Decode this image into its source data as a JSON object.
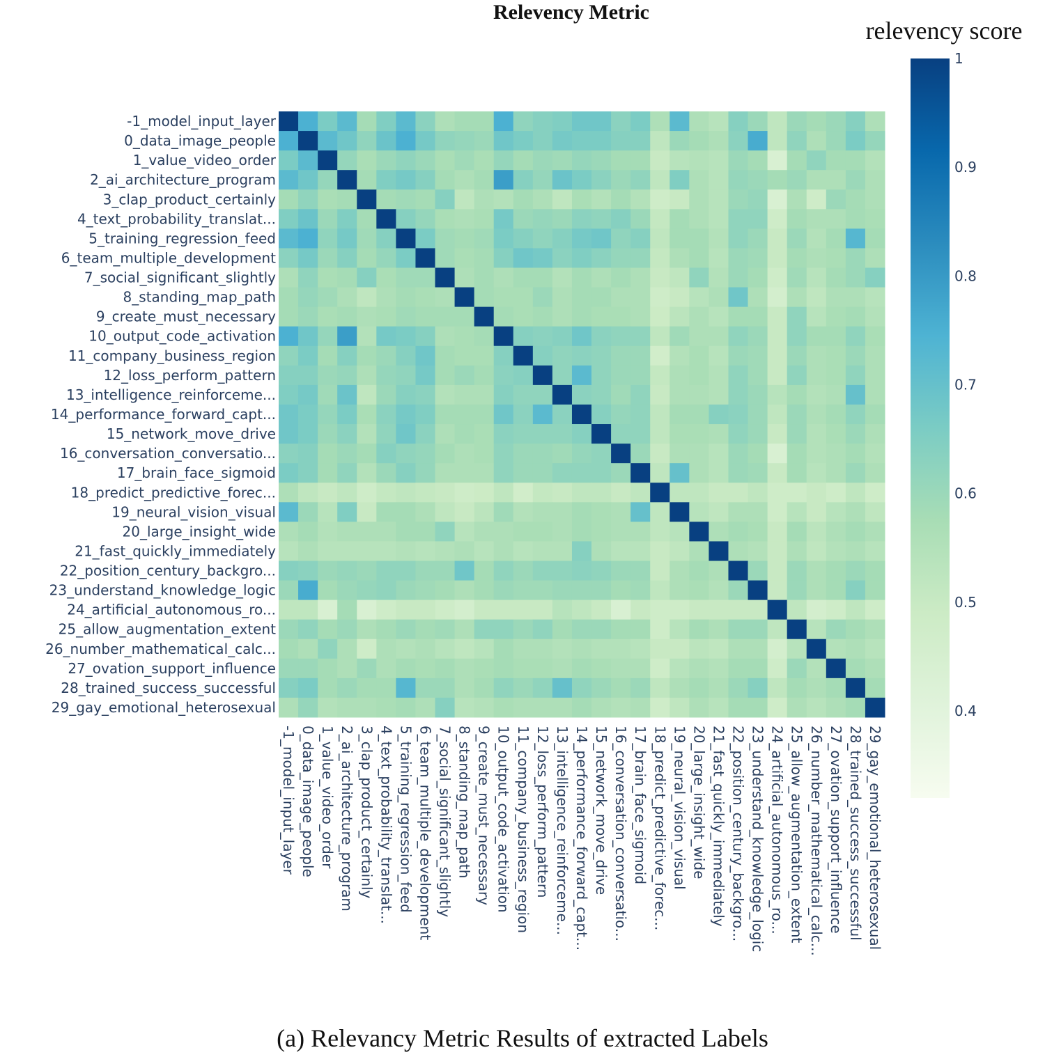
{
  "chart_data": {
    "type": "heatmap",
    "title": "Relevency Metric",
    "caption": "(a) Relevancy Metric Results of extracted Labels",
    "colorbar": {
      "title": "relevency score",
      "range": [
        0.32,
        1.0
      ],
      "ticks": [
        1,
        0.9,
        0.8,
        0.7,
        0.6,
        0.5,
        0.4
      ],
      "tick_labels": [
        "1",
        "0.9",
        "0.8",
        "0.7",
        "0.6",
        "0.5",
        "0.4"
      ],
      "colors": [
        "#f7fcf0",
        "#e0f3db",
        "#ccebc5",
        "#a8ddb5",
        "#7bccc4",
        "#4eb3d3",
        "#2b8cbe",
        "#0868ac",
        "#084081"
      ]
    },
    "labels": [
      "-1_model_input_layer",
      "0_data_image_people",
      "1_value_video_order",
      "2_ai_architecture_program",
      "3_clap_product_certainly",
      "4_text_probability_translat...",
      "5_training_regression_feed",
      "6_team_multiple_development",
      "7_social_significant_slightly",
      "8_standing_map_path",
      "9_create_must_necessary",
      "10_output_code_activation",
      "11_company_business_region",
      "12_loss_perform_pattern",
      "13_intelligence_reinforceme...",
      "14_performance_forward_capt...",
      "15_network_move_drive",
      "16_conversation_conversatio...",
      "17_brain_face_sigmoid",
      "18_predict_predictive_forec...",
      "19_neural_vision_visual",
      "20_large_insight_wide",
      "21_fast_quickly_immediately",
      "22_position_century_backgro...",
      "23_understand_knowledge_logic",
      "24_artificial_autonomous_ro...",
      "25_allow_augmentation_extent",
      "26_number_mathematical_calc...",
      "27_ovation_support_influence",
      "28_trained_success_successful",
      "29_gay_emotional_heterosexual"
    ],
    "z": [
      [
        1.0,
        0.75,
        0.66,
        0.72,
        0.58,
        0.65,
        0.72,
        0.63,
        0.56,
        0.58,
        0.58,
        0.75,
        0.62,
        0.64,
        0.65,
        0.68,
        0.68,
        0.63,
        0.66,
        0.56,
        0.72,
        0.56,
        0.54,
        0.64,
        0.6,
        0.52,
        0.6,
        0.58,
        0.6,
        0.64,
        0.56
      ],
      [
        0.75,
        1.0,
        0.72,
        0.68,
        0.62,
        0.69,
        0.75,
        0.67,
        0.62,
        0.61,
        0.6,
        0.68,
        0.66,
        0.64,
        0.67,
        0.66,
        0.66,
        0.64,
        0.64,
        0.52,
        0.6,
        0.58,
        0.56,
        0.63,
        0.76,
        0.52,
        0.62,
        0.56,
        0.6,
        0.66,
        0.61
      ],
      [
        0.66,
        0.72,
        1.0,
        0.61,
        0.57,
        0.6,
        0.62,
        0.6,
        0.57,
        0.59,
        0.57,
        0.61,
        0.58,
        0.6,
        0.59,
        0.61,
        0.6,
        0.58,
        0.58,
        0.5,
        0.54,
        0.55,
        0.54,
        0.6,
        0.58,
        0.44,
        0.58,
        0.62,
        0.58,
        0.58,
        0.55
      ],
      [
        0.72,
        0.68,
        0.61,
        1.0,
        0.58,
        0.65,
        0.67,
        0.64,
        0.58,
        0.56,
        0.58,
        0.79,
        0.64,
        0.61,
        0.69,
        0.66,
        0.63,
        0.6,
        0.62,
        0.52,
        0.65,
        0.56,
        0.54,
        0.61,
        0.6,
        0.58,
        0.6,
        0.56,
        0.56,
        0.6,
        0.56
      ],
      [
        0.58,
        0.62,
        0.57,
        0.58,
        1.0,
        0.58,
        0.59,
        0.58,
        0.64,
        0.52,
        0.56,
        0.55,
        0.58,
        0.56,
        0.52,
        0.57,
        0.55,
        0.58,
        0.55,
        0.48,
        0.5,
        0.56,
        0.54,
        0.6,
        0.61,
        0.44,
        0.56,
        0.48,
        0.6,
        0.58,
        0.56
      ],
      [
        0.65,
        0.69,
        0.6,
        0.65,
        0.58,
        1.0,
        0.64,
        0.61,
        0.57,
        0.56,
        0.57,
        0.67,
        0.6,
        0.61,
        0.6,
        0.63,
        0.62,
        0.64,
        0.6,
        0.51,
        0.58,
        0.56,
        0.54,
        0.62,
        0.62,
        0.48,
        0.58,
        0.56,
        0.56,
        0.58,
        0.57
      ],
      [
        0.72,
        0.75,
        0.62,
        0.67,
        0.59,
        0.64,
        1.0,
        0.66,
        0.59,
        0.58,
        0.59,
        0.66,
        0.64,
        0.62,
        0.64,
        0.67,
        0.68,
        0.62,
        0.64,
        0.52,
        0.58,
        0.58,
        0.55,
        0.62,
        0.6,
        0.5,
        0.6,
        0.55,
        0.58,
        0.73,
        0.58
      ],
      [
        0.63,
        0.67,
        0.6,
        0.64,
        0.58,
        0.61,
        0.66,
        1.0,
        0.59,
        0.57,
        0.58,
        0.64,
        0.68,
        0.67,
        0.63,
        0.65,
        0.63,
        0.61,
        0.61,
        0.51,
        0.56,
        0.58,
        0.54,
        0.6,
        0.59,
        0.5,
        0.58,
        0.56,
        0.57,
        0.6,
        0.56
      ],
      [
        0.56,
        0.62,
        0.57,
        0.58,
        0.64,
        0.57,
        0.59,
        0.59,
        1.0,
        0.56,
        0.58,
        0.56,
        0.58,
        0.58,
        0.55,
        0.58,
        0.56,
        0.58,
        0.56,
        0.5,
        0.52,
        0.62,
        0.55,
        0.6,
        0.58,
        0.48,
        0.59,
        0.54,
        0.58,
        0.6,
        0.64
      ],
      [
        0.58,
        0.61,
        0.59,
        0.56,
        0.52,
        0.56,
        0.58,
        0.57,
        0.56,
        1.0,
        0.58,
        0.57,
        0.57,
        0.6,
        0.56,
        0.58,
        0.58,
        0.56,
        0.56,
        0.48,
        0.5,
        0.54,
        0.56,
        0.68,
        0.56,
        0.46,
        0.56,
        0.52,
        0.56,
        0.56,
        0.54
      ],
      [
        0.58,
        0.6,
        0.57,
        0.58,
        0.56,
        0.57,
        0.59,
        0.58,
        0.58,
        0.58,
        1.0,
        0.58,
        0.57,
        0.58,
        0.56,
        0.58,
        0.57,
        0.57,
        0.56,
        0.49,
        0.53,
        0.56,
        0.54,
        0.58,
        0.58,
        0.5,
        0.62,
        0.54,
        0.57,
        0.58,
        0.55
      ],
      [
        0.75,
        0.68,
        0.61,
        0.79,
        0.55,
        0.67,
        0.66,
        0.64,
        0.56,
        0.57,
        0.58,
        1.0,
        0.64,
        0.63,
        0.64,
        0.68,
        0.63,
        0.62,
        0.62,
        0.52,
        0.59,
        0.56,
        0.56,
        0.62,
        0.6,
        0.5,
        0.62,
        0.58,
        0.58,
        0.62,
        0.57
      ],
      [
        0.62,
        0.66,
        0.58,
        0.64,
        0.58,
        0.6,
        0.64,
        0.68,
        0.58,
        0.57,
        0.57,
        0.64,
        1.0,
        0.64,
        0.62,
        0.63,
        0.62,
        0.6,
        0.6,
        0.47,
        0.55,
        0.57,
        0.54,
        0.6,
        0.59,
        0.5,
        0.6,
        0.56,
        0.57,
        0.6,
        0.56
      ],
      [
        0.64,
        0.64,
        0.6,
        0.61,
        0.56,
        0.61,
        0.62,
        0.67,
        0.58,
        0.6,
        0.58,
        0.63,
        0.64,
        1.0,
        0.62,
        0.72,
        0.62,
        0.6,
        0.6,
        0.51,
        0.56,
        0.57,
        0.55,
        0.62,
        0.59,
        0.5,
        0.62,
        0.56,
        0.57,
        0.62,
        0.56
      ],
      [
        0.65,
        0.67,
        0.59,
        0.69,
        0.52,
        0.6,
        0.64,
        0.63,
        0.55,
        0.56,
        0.56,
        0.64,
        0.62,
        0.62,
        1.0,
        0.63,
        0.62,
        0.59,
        0.62,
        0.5,
        0.56,
        0.56,
        0.55,
        0.62,
        0.6,
        0.54,
        0.58,
        0.55,
        0.56,
        0.7,
        0.56
      ],
      [
        0.68,
        0.66,
        0.61,
        0.66,
        0.57,
        0.63,
        0.67,
        0.65,
        0.58,
        0.58,
        0.58,
        0.68,
        0.63,
        0.72,
        0.63,
        1.0,
        0.64,
        0.61,
        0.62,
        0.52,
        0.58,
        0.58,
        0.64,
        0.63,
        0.6,
        0.52,
        0.6,
        0.56,
        0.58,
        0.62,
        0.58
      ],
      [
        0.68,
        0.66,
        0.6,
        0.63,
        0.55,
        0.62,
        0.68,
        0.63,
        0.56,
        0.58,
        0.57,
        0.63,
        0.62,
        0.62,
        0.62,
        0.64,
        1.0,
        0.62,
        0.62,
        0.52,
        0.57,
        0.57,
        0.56,
        0.62,
        0.6,
        0.5,
        0.6,
        0.55,
        0.57,
        0.6,
        0.56
      ],
      [
        0.63,
        0.64,
        0.58,
        0.6,
        0.58,
        0.64,
        0.62,
        0.61,
        0.58,
        0.56,
        0.57,
        0.62,
        0.6,
        0.6,
        0.59,
        0.61,
        0.62,
        1.0,
        0.6,
        0.5,
        0.56,
        0.56,
        0.54,
        0.6,
        0.58,
        0.44,
        0.58,
        0.55,
        0.56,
        0.58,
        0.55
      ],
      [
        0.66,
        0.64,
        0.58,
        0.62,
        0.55,
        0.6,
        0.64,
        0.61,
        0.56,
        0.56,
        0.56,
        0.62,
        0.6,
        0.6,
        0.62,
        0.62,
        0.62,
        0.6,
        1.0,
        0.52,
        0.7,
        0.56,
        0.54,
        0.6,
        0.59,
        0.5,
        0.58,
        0.54,
        0.56,
        0.6,
        0.56
      ],
      [
        0.56,
        0.52,
        0.5,
        0.52,
        0.48,
        0.51,
        0.52,
        0.51,
        0.5,
        0.48,
        0.49,
        0.52,
        0.47,
        0.51,
        0.5,
        0.52,
        0.52,
        0.5,
        0.52,
        1.0,
        0.52,
        0.52,
        0.5,
        0.5,
        0.52,
        0.48,
        0.48,
        0.5,
        0.48,
        0.52,
        0.48
      ],
      [
        0.72,
        0.6,
        0.54,
        0.65,
        0.5,
        0.58,
        0.58,
        0.56,
        0.52,
        0.5,
        0.53,
        0.59,
        0.55,
        0.56,
        0.56,
        0.58,
        0.57,
        0.56,
        0.7,
        0.52,
        1.0,
        0.54,
        0.52,
        0.56,
        0.56,
        0.48,
        0.54,
        0.5,
        0.54,
        0.56,
        0.52
      ],
      [
        0.56,
        0.58,
        0.55,
        0.56,
        0.56,
        0.56,
        0.58,
        0.58,
        0.62,
        0.54,
        0.56,
        0.56,
        0.57,
        0.57,
        0.56,
        0.58,
        0.57,
        0.56,
        0.56,
        0.52,
        0.54,
        1.0,
        0.56,
        0.58,
        0.57,
        0.5,
        0.58,
        0.53,
        0.56,
        0.58,
        0.56
      ],
      [
        0.54,
        0.56,
        0.54,
        0.54,
        0.54,
        0.54,
        0.55,
        0.54,
        0.55,
        0.56,
        0.54,
        0.56,
        0.54,
        0.55,
        0.55,
        0.64,
        0.56,
        0.54,
        0.54,
        0.5,
        0.52,
        0.56,
        1.0,
        0.56,
        0.55,
        0.5,
        0.56,
        0.52,
        0.55,
        0.56,
        0.54
      ],
      [
        0.64,
        0.63,
        0.6,
        0.61,
        0.6,
        0.62,
        0.62,
        0.6,
        0.6,
        0.68,
        0.58,
        0.62,
        0.6,
        0.62,
        0.62,
        0.63,
        0.62,
        0.6,
        0.6,
        0.5,
        0.56,
        0.58,
        0.56,
        1.0,
        0.6,
        0.5,
        0.6,
        0.56,
        0.58,
        0.6,
        0.58
      ],
      [
        0.6,
        0.76,
        0.58,
        0.6,
        0.61,
        0.62,
        0.6,
        0.59,
        0.58,
        0.56,
        0.58,
        0.6,
        0.59,
        0.59,
        0.6,
        0.6,
        0.6,
        0.58,
        0.59,
        0.52,
        0.56,
        0.57,
        0.55,
        0.6,
        1.0,
        0.5,
        0.6,
        0.56,
        0.58,
        0.64,
        0.58
      ],
      [
        0.52,
        0.52,
        0.44,
        0.58,
        0.44,
        0.48,
        0.5,
        0.5,
        0.48,
        0.46,
        0.5,
        0.5,
        0.5,
        0.5,
        0.54,
        0.52,
        0.5,
        0.44,
        0.5,
        0.48,
        0.48,
        0.5,
        0.5,
        0.5,
        0.5,
        1.0,
        0.52,
        0.46,
        0.48,
        0.52,
        0.48
      ],
      [
        0.6,
        0.62,
        0.58,
        0.6,
        0.56,
        0.58,
        0.6,
        0.58,
        0.59,
        0.56,
        0.62,
        0.62,
        0.6,
        0.62,
        0.58,
        0.6,
        0.6,
        0.58,
        0.58,
        0.48,
        0.54,
        0.58,
        0.56,
        0.6,
        0.6,
        0.52,
        1.0,
        0.54,
        0.6,
        0.58,
        0.56
      ],
      [
        0.58,
        0.56,
        0.62,
        0.56,
        0.48,
        0.56,
        0.55,
        0.56,
        0.54,
        0.52,
        0.54,
        0.58,
        0.56,
        0.56,
        0.55,
        0.56,
        0.55,
        0.55,
        0.54,
        0.5,
        0.5,
        0.53,
        0.52,
        0.56,
        0.56,
        0.46,
        0.54,
        1.0,
        0.55,
        0.56,
        0.54
      ],
      [
        0.6,
        0.6,
        0.58,
        0.56,
        0.6,
        0.56,
        0.58,
        0.57,
        0.58,
        0.56,
        0.57,
        0.58,
        0.57,
        0.57,
        0.56,
        0.58,
        0.57,
        0.56,
        0.56,
        0.48,
        0.54,
        0.56,
        0.55,
        0.58,
        0.58,
        0.48,
        0.6,
        0.55,
        1.0,
        0.58,
        0.56
      ],
      [
        0.64,
        0.66,
        0.58,
        0.6,
        0.58,
        0.58,
        0.73,
        0.6,
        0.6,
        0.56,
        0.58,
        0.62,
        0.6,
        0.62,
        0.7,
        0.62,
        0.6,
        0.58,
        0.6,
        0.52,
        0.56,
        0.58,
        0.56,
        0.6,
        0.64,
        0.52,
        0.58,
        0.56,
        0.58,
        1.0,
        0.58
      ],
      [
        0.56,
        0.61,
        0.55,
        0.56,
        0.56,
        0.57,
        0.58,
        0.56,
        0.64,
        0.54,
        0.55,
        0.57,
        0.56,
        0.56,
        0.56,
        0.58,
        0.56,
        0.55,
        0.56,
        0.48,
        0.52,
        0.56,
        0.54,
        0.58,
        0.58,
        0.48,
        0.56,
        0.54,
        0.56,
        0.58,
        1.0
      ]
    ]
  }
}
